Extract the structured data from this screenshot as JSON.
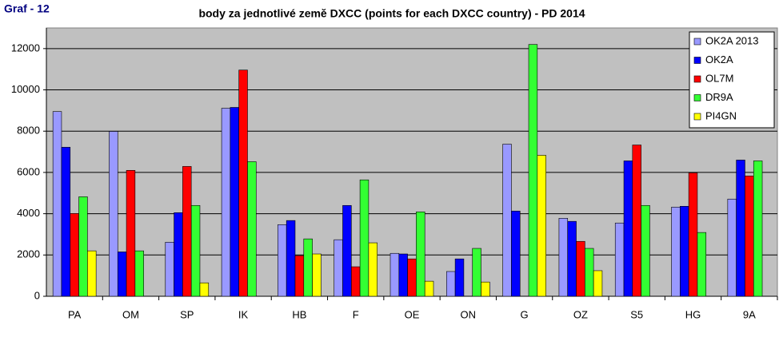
{
  "chart_data": {
    "type": "bar",
    "label": "Graf - 12",
    "title": "body za jednotlivé země DXCC (points for each DXCC country) - PD 2014",
    "categories": [
      "PA",
      "OM",
      "SP",
      "IK",
      "HB",
      "F",
      "OE",
      "ON",
      "G",
      "OZ",
      "S5",
      "HG",
      "9A"
    ],
    "series": [
      {
        "name": "OK2A 2013",
        "color": "#9999ff",
        "values": [
          8950,
          7990,
          2620,
          9110,
          3470,
          2740,
          2080,
          1200,
          7370,
          3780,
          3550,
          4320,
          4710
        ]
      },
      {
        "name": "OK2A",
        "color": "#0000ff",
        "values": [
          7220,
          2150,
          4050,
          9150,
          3670,
          4400,
          2050,
          1810,
          4130,
          3630,
          6560,
          4360,
          6600
        ]
      },
      {
        "name": "OL7M",
        "color": "#ff0000",
        "values": [
          4010,
          6100,
          6290,
          10960,
          1970,
          1430,
          1810,
          null,
          null,
          2660,
          7330,
          5980,
          5830
        ]
      },
      {
        "name": "DR9A",
        "color": "#33ff33",
        "values": [
          4820,
          2200,
          4400,
          6520,
          2780,
          5640,
          4090,
          2320,
          12200,
          2320,
          4400,
          3090,
          6560
        ]
      },
      {
        "name": "PI4GN",
        "color": "#ffff00",
        "values": [
          2200,
          null,
          650,
          null,
          2050,
          2590,
          730,
          690,
          6830,
          1240,
          null,
          null,
          null
        ]
      }
    ],
    "ylim": [
      0,
      13000
    ],
    "yticks": [
      0,
      2000,
      4000,
      6000,
      8000,
      10000,
      12000
    ],
    "grid": true,
    "legend": "top-right"
  }
}
